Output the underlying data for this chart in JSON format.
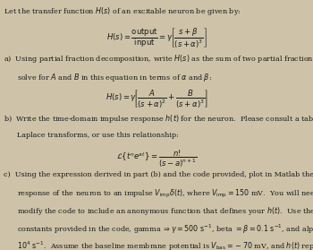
{
  "background_color": "#cec3a8",
  "text_color": "#1a1a1a",
  "figsize": [
    3.5,
    2.79
  ],
  "dpi": 100,
  "fs": 5.8
}
